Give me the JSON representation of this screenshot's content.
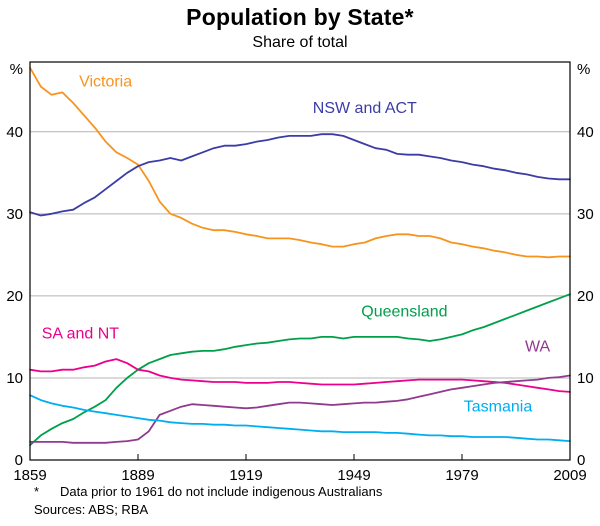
{
  "header": {
    "title": "Population by State*",
    "subtitle": "Share of total"
  },
  "chart_data": {
    "type": "line",
    "title": "Population by State*",
    "subtitle": "Share of total",
    "ylabel_left": "%",
    "ylabel_right": "%",
    "ylim": [
      0,
      48.5
    ],
    "yticks": [
      0,
      10,
      20,
      30,
      40
    ],
    "xlim": [
      1859,
      2009
    ],
    "xticks": [
      1859,
      1889,
      1919,
      1949,
      1979,
      2009
    ],
    "grid": true,
    "legend_position": "inline-labels",
    "x": [
      1859,
      1862,
      1865,
      1868,
      1871,
      1874,
      1877,
      1880,
      1883,
      1886,
      1889,
      1892,
      1895,
      1898,
      1901,
      1904,
      1907,
      1910,
      1913,
      1916,
      1919,
      1922,
      1925,
      1928,
      1931,
      1934,
      1937,
      1940,
      1943,
      1946,
      1949,
      1952,
      1955,
      1958,
      1961,
      1964,
      1967,
      1970,
      1973,
      1976,
      1979,
      1982,
      1985,
      1988,
      1991,
      1994,
      1997,
      2000,
      2003,
      2006,
      2009
    ],
    "series": [
      {
        "name": "Victoria",
        "color": "#f7941e",
        "label_pos": {
          "x": 1880,
          "y": 45.5
        },
        "values": [
          47.8,
          45.5,
          44.5,
          44.8,
          43.5,
          42.0,
          40.5,
          38.8,
          37.5,
          36.8,
          36.0,
          34.0,
          31.5,
          30.0,
          29.5,
          28.8,
          28.3,
          28.0,
          28.0,
          27.8,
          27.5,
          27.3,
          27.0,
          27.0,
          27.0,
          26.8,
          26.5,
          26.3,
          26.0,
          26.0,
          26.3,
          26.5,
          27.0,
          27.3,
          27.5,
          27.5,
          27.3,
          27.3,
          27.0,
          26.5,
          26.3,
          26.0,
          25.8,
          25.5,
          25.3,
          25.0,
          24.8,
          24.8,
          24.7,
          24.8,
          24.8
        ]
      },
      {
        "name": "NSW and ACT",
        "color": "#3c3ca6",
        "label_pos": {
          "x": 1952,
          "y": 42.3
        },
        "values": [
          30.2,
          29.8,
          30.0,
          30.3,
          30.5,
          31.3,
          32.0,
          33.0,
          34.0,
          35.0,
          35.8,
          36.3,
          36.5,
          36.8,
          36.5,
          37.0,
          37.5,
          38.0,
          38.3,
          38.3,
          38.5,
          38.8,
          39.0,
          39.3,
          39.5,
          39.5,
          39.5,
          39.7,
          39.7,
          39.5,
          39.0,
          38.5,
          38.0,
          37.8,
          37.3,
          37.2,
          37.2,
          37.0,
          36.8,
          36.5,
          36.3,
          36.0,
          35.8,
          35.5,
          35.3,
          35.0,
          34.8,
          34.5,
          34.3,
          34.2,
          34.2
        ]
      },
      {
        "name": "Queensland",
        "color": "#00a04a",
        "label_pos": {
          "x": 1963,
          "y": 17.5
        },
        "values": [
          1.8,
          3.0,
          3.8,
          4.5,
          5.0,
          5.8,
          6.5,
          7.3,
          8.8,
          10.0,
          11.0,
          11.8,
          12.3,
          12.8,
          13.0,
          13.2,
          13.3,
          13.3,
          13.5,
          13.8,
          14.0,
          14.2,
          14.3,
          14.5,
          14.7,
          14.8,
          14.8,
          15.0,
          15.0,
          14.8,
          15.0,
          15.0,
          15.0,
          15.0,
          15.0,
          14.8,
          14.7,
          14.5,
          14.7,
          15.0,
          15.3,
          15.8,
          16.2,
          16.7,
          17.2,
          17.7,
          18.2,
          18.7,
          19.2,
          19.7,
          20.2
        ]
      },
      {
        "name": "SA and NT",
        "color": "#ec008c",
        "label_pos": {
          "x": 1873,
          "y": 14.8
        },
        "values": [
          11.0,
          10.8,
          10.8,
          11.0,
          11.0,
          11.3,
          11.5,
          12.0,
          12.3,
          11.8,
          11.0,
          10.8,
          10.3,
          10.0,
          9.8,
          9.7,
          9.6,
          9.5,
          9.5,
          9.5,
          9.4,
          9.4,
          9.4,
          9.5,
          9.5,
          9.4,
          9.3,
          9.2,
          9.2,
          9.2,
          9.2,
          9.3,
          9.4,
          9.5,
          9.6,
          9.7,
          9.8,
          9.8,
          9.8,
          9.8,
          9.8,
          9.7,
          9.6,
          9.5,
          9.4,
          9.2,
          9.0,
          8.8,
          8.6,
          8.4,
          8.3
        ]
      },
      {
        "name": "WA",
        "color": "#903a8e",
        "label_pos": {
          "x": 2000,
          "y": 13.2
        },
        "values": [
          2.2,
          2.2,
          2.2,
          2.2,
          2.1,
          2.1,
          2.1,
          2.1,
          2.2,
          2.3,
          2.5,
          3.5,
          5.5,
          6.0,
          6.5,
          6.8,
          6.7,
          6.6,
          6.5,
          6.4,
          6.3,
          6.4,
          6.6,
          6.8,
          7.0,
          7.0,
          6.9,
          6.8,
          6.7,
          6.8,
          6.9,
          7.0,
          7.0,
          7.1,
          7.2,
          7.4,
          7.7,
          8.0,
          8.3,
          8.6,
          8.8,
          9.0,
          9.2,
          9.4,
          9.5,
          9.6,
          9.7,
          9.8,
          10.0,
          10.1,
          10.3
        ]
      },
      {
        "name": "Tasmania",
        "color": "#00aeef",
        "label_pos": {
          "x": 1989,
          "y": 5.9
        },
        "values": [
          7.9,
          7.3,
          6.9,
          6.6,
          6.4,
          6.1,
          5.9,
          5.7,
          5.5,
          5.3,
          5.1,
          4.9,
          4.8,
          4.6,
          4.5,
          4.4,
          4.4,
          4.3,
          4.3,
          4.2,
          4.2,
          4.1,
          4.0,
          3.9,
          3.8,
          3.7,
          3.6,
          3.5,
          3.5,
          3.4,
          3.4,
          3.4,
          3.4,
          3.3,
          3.3,
          3.2,
          3.1,
          3.0,
          3.0,
          2.9,
          2.9,
          2.8,
          2.8,
          2.8,
          2.8,
          2.7,
          2.6,
          2.5,
          2.5,
          2.4,
          2.3
        ]
      }
    ],
    "style": {
      "grid_color": "#b4b4b4",
      "frame_color": "#000000",
      "background": "#ffffff"
    }
  },
  "footer": {
    "footnote_marker": "*",
    "footnote_text": "Data prior to 1961 do not include indigenous Australians",
    "sources": "Sources: ABS; RBA"
  }
}
